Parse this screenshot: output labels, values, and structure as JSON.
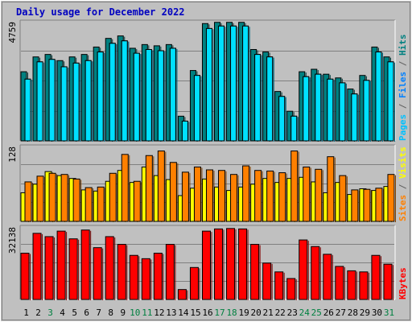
{
  "chart_data": [
    {
      "type": "bar",
      "title": "Daily usage for December 2022",
      "categories": [
        "1",
        "2",
        "3",
        "4",
        "5",
        "6",
        "7",
        "8",
        "9",
        "10",
        "11",
        "12",
        "13",
        "14",
        "15",
        "16",
        "17",
        "18",
        "19",
        "20",
        "21",
        "22",
        "23",
        "24",
        "25",
        "26",
        "27",
        "28",
        "29",
        "30",
        "31"
      ],
      "day_label_colors": [
        "#000000",
        "#000000",
        "#008040",
        "#000000",
        "#000000",
        "#000000",
        "#000000",
        "#000000",
        "#000000",
        "#008040",
        "#008040",
        "#000000",
        "#000000",
        "#000000",
        "#000000",
        "#000000",
        "#008040",
        "#008040",
        "#000000",
        "#000000",
        "#000000",
        "#000000",
        "#000000",
        "#008040",
        "#008040",
        "#000000",
        "#000000",
        "#000000",
        "#000000",
        "#000000",
        "#008040"
      ],
      "ytick": "4759",
      "ylim": [
        0,
        4759
      ],
      "ylabel_parts": [
        {
          "text": "Pages",
          "color": "#00c0ff"
        },
        {
          "text": " / ",
          "color": "#606060"
        },
        {
          "text": "Files",
          "color": "#0080ff"
        },
        {
          "text": " / ",
          "color": "#606060"
        },
        {
          "text": "Hits",
          "color": "#008080"
        }
      ],
      "series": [
        {
          "name": "Hits",
          "color": "#008080",
          "values": [
            2800,
            3400,
            3500,
            3250,
            3400,
            3500,
            3800,
            4150,
            4250,
            3750,
            3900,
            3850,
            3900,
            1000,
            2850,
            4750,
            4800,
            4800,
            4800,
            3700,
            3600,
            2000,
            1200,
            2800,
            2900,
            2700,
            2550,
            2100,
            2650,
            3800,
            3400
          ]
        },
        {
          "name": "Files",
          "color": "#0080ff",
          "values": [
            2500,
            3200,
            3300,
            3000,
            3150,
            3250,
            3600,
            3950,
            4050,
            3550,
            3700,
            3650,
            3750,
            800,
            2650,
            4550,
            4650,
            4650,
            4650,
            3500,
            3400,
            1800,
            1000,
            2600,
            2700,
            2500,
            2350,
            1900,
            2450,
            3600,
            3200
          ]
        },
        {
          "name": "Pages",
          "color": "#00e0ff",
          "values": [
            2500,
            3200,
            3300,
            3000,
            3150,
            3250,
            3600,
            3950,
            4050,
            3550,
            3700,
            3650,
            3750,
            800,
            2650,
            4550,
            4650,
            4650,
            4650,
            3500,
            3400,
            1800,
            1000,
            2600,
            2700,
            2500,
            2350,
            1900,
            2450,
            3600,
            3200
          ]
        }
      ]
    },
    {
      "type": "bar",
      "ytick": "128",
      "ylim": [
        0,
        128
      ],
      "ylabel_parts": [
        {
          "text": "Sites",
          "color": "#ff8000"
        },
        {
          "text": " / ",
          "color": "#606060"
        },
        {
          "text": "Visits",
          "color": "#ffff00"
        }
      ],
      "series": [
        {
          "name": "Visits",
          "color": "#ffff00",
          "values": [
            50,
            65,
            87,
            80,
            75,
            55,
            53,
            70,
            89,
            68,
            95,
            80,
            73,
            45,
            58,
            74,
            60,
            54,
            60,
            65,
            75,
            68,
            75,
            77,
            69,
            50,
            68,
            47,
            57,
            54,
            61
          ]
        },
        {
          "name": "Sites",
          "color": "#ff8000",
          "values": [
            69,
            79,
            84,
            82,
            74,
            59,
            60,
            84,
            117,
            70,
            115,
            123,
            103,
            86,
            95,
            90,
            89,
            82,
            97,
            89,
            88,
            85,
            123,
            95,
            91,
            113,
            80,
            55,
            56,
            58,
            82
          ]
        }
      ]
    },
    {
      "type": "bar",
      "ytick": "32138",
      "ylim": [
        0,
        32138
      ],
      "ylabel_parts": [
        {
          "text": "KBytes",
          "color": "#ff0000"
        }
      ],
      "series": [
        {
          "name": "KBytes",
          "color": "#ff0000",
          "values": [
            21000,
            30000,
            28500,
            31000,
            27500,
            31500,
            23500,
            28500,
            25000,
            20000,
            18500,
            21000,
            25000,
            4500,
            14500,
            31000,
            32000,
            32200,
            32000,
            25000,
            16500,
            12500,
            9500,
            27000,
            24000,
            20500,
            15000,
            13000,
            12500,
            20000,
            16000
          ]
        }
      ]
    }
  ]
}
